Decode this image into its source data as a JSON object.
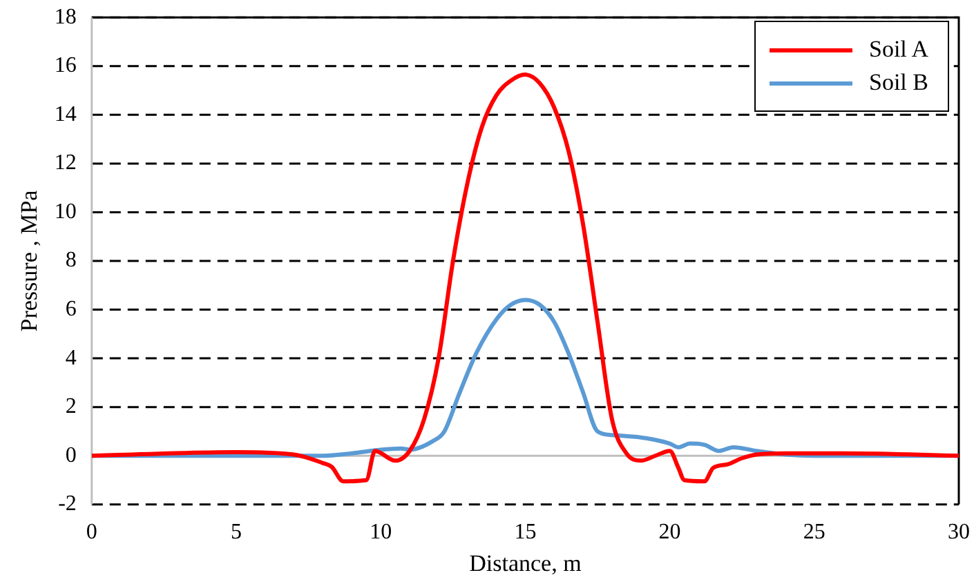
{
  "chart_data": {
    "type": "line",
    "xlabel": "Distance, m",
    "ylabel": "Pressure , MPa",
    "xlim": [
      0,
      30
    ],
    "xticks": [
      0,
      5,
      10,
      15,
      20,
      25,
      30
    ],
    "ylim": [
      -2,
      18
    ],
    "yticks": [
      -2,
      0,
      2,
      4,
      6,
      8,
      10,
      12,
      14,
      16,
      18
    ],
    "grid": "y",
    "legend": "top right",
    "marker": "none",
    "line_style": "solid",
    "series": [
      {
        "name": "Soil A",
        "color": "#ff0000",
        "x": [
          0,
          5,
          7,
          8,
          8.3,
          8.7,
          9.5,
          9.8,
          10.5,
          11,
          11.5,
          12,
          12.5,
          13,
          13.5,
          14,
          14.5,
          15,
          15.5,
          16,
          16.5,
          17,
          17.5,
          18,
          18.5,
          19,
          19.5,
          20,
          20.3,
          20.5,
          21.2,
          21.5,
          22,
          22.5,
          23,
          24,
          26,
          30
        ],
        "values": [
          0,
          0.15,
          0.05,
          -0.3,
          -0.45,
          -1.05,
          -1.0,
          0.2,
          -0.2,
          0.2,
          1.5,
          4,
          8,
          11.2,
          13.5,
          14.8,
          15.4,
          15.65,
          15.3,
          14.3,
          12.5,
          9.5,
          5.5,
          1.5,
          0.1,
          -0.2,
          0,
          0.2,
          -0.5,
          -1.0,
          -1.05,
          -0.5,
          -0.35,
          -0.1,
          0.05,
          0.1,
          0.1,
          0
        ]
      },
      {
        "name": "Soil B",
        "color": "#5b9bd5",
        "x": [
          0,
          8,
          9,
          10,
          10.7,
          11,
          11.8,
          12.2,
          12.7,
          13.3,
          14,
          14.5,
          15,
          15.5,
          16,
          16.5,
          17,
          17.5,
          18,
          19,
          19.5,
          20,
          20.3,
          20.7,
          21.2,
          21.7,
          22.2,
          23,
          24,
          25,
          30
        ],
        "values": [
          0,
          0,
          0.1,
          0.25,
          0.3,
          0.25,
          0.6,
          1.0,
          2.5,
          4.2,
          5.6,
          6.2,
          6.4,
          6.2,
          5.5,
          4.2,
          2.6,
          1.0,
          0.85,
          0.75,
          0.65,
          0.5,
          0.35,
          0.5,
          0.45,
          0.2,
          0.35,
          0.2,
          0.05,
          0,
          0
        ]
      }
    ]
  }
}
